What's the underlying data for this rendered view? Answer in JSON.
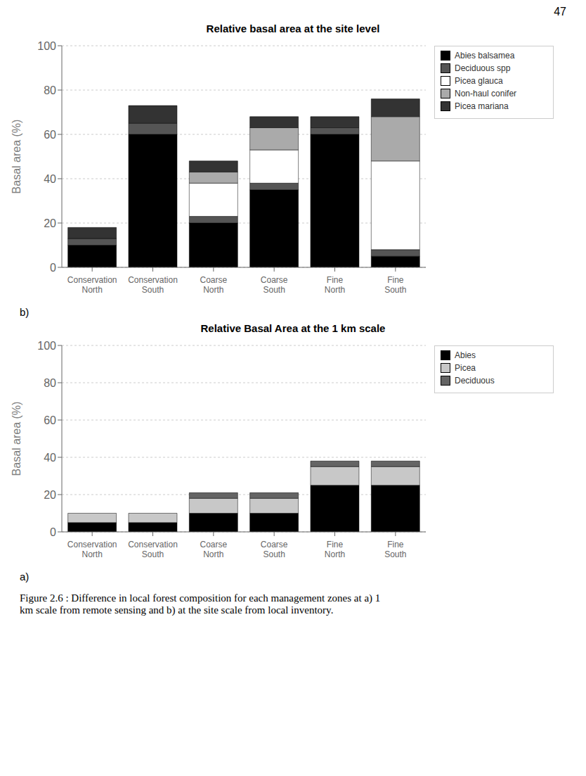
{
  "chart_data": [
    {
      "type": "bar",
      "stacked": true,
      "title": "Relative basal area at the site level",
      "y_label": "Basal area (%)",
      "categories": [
        "Conservation\nNorth",
        "Conservation\nSouth",
        "Coarse\nNorth",
        "Coarse\nSouth",
        "Fine\nNorth",
        "Fine\nSouth"
      ],
      "series": [
        {
          "name": "Abies balsamea",
          "color": "#000000",
          "values": [
            10,
            60,
            20,
            35,
            60,
            5
          ]
        },
        {
          "name": "Deciduous spp",
          "color": "#555555",
          "values": [
            3,
            5,
            3,
            3,
            3,
            3
          ]
        },
        {
          "name": "Picea glauca",
          "color": "#ffffff",
          "values": [
            0,
            0,
            15,
            15,
            0,
            40
          ]
        },
        {
          "name": "Non-haul conifer",
          "color": "#aaaaaa",
          "values": [
            0,
            0,
            5,
            10,
            0,
            20
          ]
        },
        {
          "name": "Picea mariana",
          "color": "#333333",
          "values": [
            5,
            8,
            5,
            5,
            5,
            8
          ]
        }
      ],
      "ylim": [
        0,
        100
      ],
      "yticks": [
        0,
        20,
        40,
        60,
        80,
        100
      ],
      "grid": true,
      "legend": "upper right",
      "annotations": [
        "b)"
      ]
    },
    {
      "type": "bar",
      "stacked": true,
      "title": "Relative Basal Area at the 1 km scale",
      "y_label": "Basal area (%)",
      "categories": [
        "Conservation\nNorth",
        "Conservation\nSouth",
        "Coarse\nNorth",
        "Coarse\nSouth",
        "Fine\nNorth",
        "Fine\nSouth"
      ],
      "series": [
        {
          "name": "Abies",
          "color": "#000000",
          "values": [
            5,
            5,
            10,
            10,
            25,
            25
          ]
        },
        {
          "name": "Picea",
          "color": "#c8c8c8",
          "values": [
            5,
            5,
            8,
            8,
            10,
            10
          ]
        },
        {
          "name": "Deciduous",
          "color": "#646464",
          "values": [
            0,
            0,
            3,
            3,
            3,
            3
          ]
        }
      ],
      "ylim": [
        0,
        100
      ],
      "yticks": [
        0,
        20,
        40,
        60,
        80,
        100
      ],
      "grid": true,
      "legend": "upper right",
      "annotations": [
        "a)"
      ]
    }
  ],
  "caption": "Figure 2.6 : Difference in local forest composition for each management zones at a) 1\nkm scale from remote sensing and b) at the site scale from local inventory.",
  "page_number": "47"
}
